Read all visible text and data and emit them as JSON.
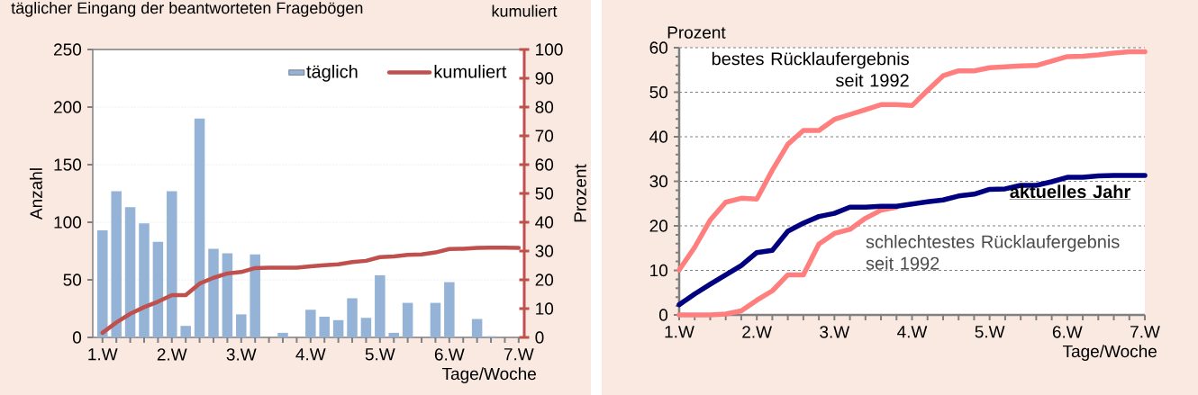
{
  "chart_data": [
    {
      "type": "bar",
      "title": "täglicher Eingang der beantworteten Fragebögen",
      "xlabel": "Tage/Woche",
      "ylabel": "Anzahl",
      "y2label": "Prozent",
      "categories": [
        "1.W",
        null,
        null,
        null,
        null,
        "2.W",
        null,
        null,
        null,
        null,
        "3.W",
        null,
        null,
        null,
        null,
        "4.W",
        null,
        null,
        null,
        null,
        "5.W",
        null,
        null,
        null,
        null,
        "6.W",
        null,
        null,
        null,
        null,
        "7.W"
      ],
      "series": [
        {
          "name": "täglich",
          "color": "#95b3d7",
          "values": [
            93,
            127,
            113,
            99,
            83,
            127,
            10,
            190,
            77,
            73,
            20,
            72,
            0,
            4,
            0,
            24,
            18,
            15,
            34,
            17,
            54,
            4,
            30,
            0,
            30,
            48,
            0,
            16,
            1,
            0,
            0
          ]
        },
        {
          "name": "kumuliert",
          "type": "line",
          "axis": "y2",
          "color": "#c0504d",
          "values": [
            1.6,
            5.2,
            8.2,
            10.5,
            12.4,
            14.7,
            14.7,
            18.7,
            20.7,
            22.2,
            22.7,
            24.1,
            24.2,
            24.2,
            24.2,
            24.7,
            25.1,
            25.4,
            26.2,
            26.6,
            27.9,
            28.1,
            28.7,
            28.8,
            29.5,
            30.7,
            30.8,
            31.1,
            31.2,
            31.2,
            31.1
          ]
        }
      ],
      "ylim": [
        0,
        250
      ],
      "yticks": [
        0,
        50,
        100,
        150,
        200,
        250
      ],
      "y2lim": [
        0,
        100
      ],
      "y2ticks": [
        0,
        10,
        20,
        30,
        40,
        50,
        60,
        70,
        80,
        90,
        100
      ],
      "grid": "y",
      "legend": "top right",
      "annotations": [
        "kumuliert"
      ]
    },
    {
      "type": "line",
      "xlabel": "Tage/Woche",
      "ylabel": "Prozent",
      "categories": [
        "1.W",
        null,
        null,
        null,
        null,
        "2.W",
        null,
        null,
        null,
        null,
        "3.W",
        null,
        null,
        null,
        null,
        "4.W",
        null,
        null,
        null,
        null,
        "5.W",
        null,
        null,
        null,
        null,
        "6.W",
        null,
        null,
        null,
        null,
        "7.W"
      ],
      "series": [
        {
          "name": "bestes Rücklaufergebnis seit 1992",
          "color": "#ff7f7f",
          "values": [
            10.1,
            15.2,
            21.3,
            25.3,
            26.2,
            26.0,
            32.5,
            38.3,
            41.4,
            41.4,
            43.9,
            45.0,
            46.1,
            47.2,
            47.2,
            47.0,
            50.4,
            53.7,
            54.8,
            54.8,
            55.5,
            55.7,
            55.9,
            56.0,
            57.0,
            58.0,
            58.1,
            58.4,
            58.8,
            59.1,
            59.1
          ]
        },
        {
          "name": "schlechtestes Rücklaufergebnis seit 1992",
          "color": "#ff7f7f",
          "values": [
            0,
            0,
            0,
            0.2,
            0.9,
            3.3,
            5.4,
            9.0,
            9.0,
            15.9,
            18.3,
            19.2,
            21.7,
            23.5,
            24.2,
            null,
            null,
            null,
            null,
            null,
            null,
            null,
            null,
            null,
            null,
            null,
            null,
            null,
            null,
            null,
            null
          ]
        },
        {
          "name": "aktuelles Jahr",
          "color": "#000080",
          "values": [
            2.3,
            4.7,
            6.9,
            9.0,
            11.1,
            14.0,
            14.5,
            18.8,
            20.6,
            22.1,
            22.8,
            24.2,
            24.2,
            24.4,
            24.4,
            24.9,
            25.4,
            25.8,
            26.7,
            27.1,
            28.2,
            28.3,
            29.1,
            29.1,
            29.9,
            30.9,
            30.9,
            31.2,
            31.3,
            31.3,
            31.3
          ]
        }
      ],
      "ylim": [
        0,
        60
      ],
      "yticks": [
        0,
        10,
        20,
        30,
        40,
        50,
        60
      ],
      "grid": "y"
    }
  ]
}
